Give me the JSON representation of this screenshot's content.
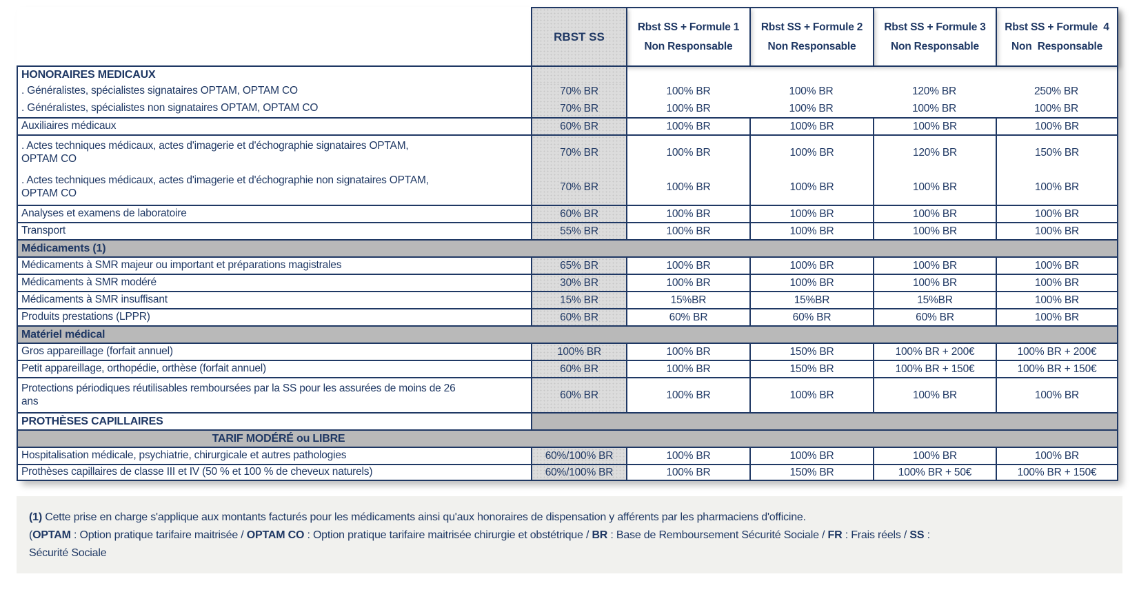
{
  "colors": {
    "ink": "#1f3864",
    "border": "#1f3864",
    "band": "#b9b9b9",
    "rbst_fill": "#dcdcdc",
    "footer_bg": "#f1f1ee"
  },
  "header": {
    "rbst": "RBST SS",
    "formules": [
      {
        "line1": "Rbst SS + Formule 1",
        "line2": "Non Responsable"
      },
      {
        "line1": "Rbst SS + Formule 2",
        "line2": "Non Responsable"
      },
      {
        "line1": "Rbst SS + Formule 3",
        "line2": "Non Responsable"
      },
      {
        "line1": "Rbst SS + Formule  4",
        "line2": "Non  Responsable"
      }
    ]
  },
  "rows": [
    {
      "type": "data",
      "bold": true,
      "no_dividers": true,
      "label": "HONORAIRES MEDICAUX",
      "values": [
        "",
        "",
        "",
        "",
        ""
      ]
    },
    {
      "type": "data",
      "no_top": true,
      "no_dividers": true,
      "label": ". Généralistes, spécialistes signataires OPTAM, OPTAM CO",
      "values": [
        "70% BR",
        "100% BR",
        "100% BR",
        "120% BR",
        "250% BR"
      ]
    },
    {
      "type": "data",
      "no_top": true,
      "no_dividers": true,
      "label": ". Généralistes, spécialistes non signataires OPTAM, OPTAM CO",
      "values": [
        "70% BR",
        "100% BR",
        "100% BR",
        "100% BR",
        "100% BR"
      ]
    },
    {
      "type": "data",
      "label": "Auxiliaires médicaux",
      "values": [
        "60% BR",
        "100% BR",
        "100% BR",
        "100% BR",
        "100% BR"
      ]
    },
    {
      "type": "data",
      "tall": true,
      "label": ". Actes techniques médicaux, actes d'imagerie et d'échographie signataires OPTAM,\nOPTAM CO",
      "values": [
        "70% BR",
        "100% BR",
        "100% BR",
        "120% BR",
        "150% BR"
      ]
    },
    {
      "type": "data",
      "tall": true,
      "no_top": true,
      "label": ". Actes techniques médicaux, actes d'imagerie et d'échographie non signataires OPTAM,\nOPTAM CO",
      "values": [
        "70% BR",
        "100% BR",
        "100% BR",
        "100% BR",
        "100% BR"
      ]
    },
    {
      "type": "data",
      "label": "Analyses et examens de laboratoire",
      "values": [
        "60% BR",
        "100% BR",
        "100% BR",
        "100% BR",
        "100% BR"
      ]
    },
    {
      "type": "data",
      "label": "Transport",
      "values": [
        "55% BR",
        "100% BR",
        "100% BR",
        "100% BR",
        "100% BR"
      ]
    },
    {
      "type": "section",
      "label": "Médicaments (1)"
    },
    {
      "type": "data",
      "label": "Médicaments à SMR majeur ou important et préparations magistrales",
      "values": [
        "65% BR",
        "100% BR",
        "100% BR",
        "100% BR",
        "100% BR"
      ]
    },
    {
      "type": "data",
      "label": "Médicaments à SMR modéré",
      "values": [
        "30% BR",
        "100% BR",
        "100% BR",
        "100% BR",
        "100% BR"
      ]
    },
    {
      "type": "data",
      "label": "Médicaments à SMR insuffisant",
      "values": [
        "15% BR",
        "15%BR",
        "15%BR",
        "15%BR",
        "100% BR"
      ]
    },
    {
      "type": "data",
      "label": "Produits prestations (LPPR)",
      "values": [
        "60% BR",
        "60% BR",
        "60% BR",
        "60% BR",
        "100% BR"
      ]
    },
    {
      "type": "section",
      "label": "Matériel médical"
    },
    {
      "type": "data",
      "label": "Gros appareillage (forfait annuel)",
      "values": [
        "100% BR",
        "100% BR",
        "150% BR",
        "100% BR + 200€",
        "100% BR + 200€"
      ]
    },
    {
      "type": "data",
      "label": "Petit appareillage, orthopédie, orthèse (forfait annuel)",
      "values": [
        "60% BR",
        "100% BR",
        "150% BR",
        "100% BR + 150€",
        "100% BR + 150€"
      ]
    },
    {
      "type": "data",
      "tall": true,
      "label": "Protections périodiques réutilisables remboursées par la SS pour les assurées de moins de 26\nans",
      "values": [
        "60% BR",
        "100% BR",
        "100% BR",
        "100% BR",
        "100% BR"
      ]
    },
    {
      "type": "section_split",
      "label": "PROTHÈSES CAPILLAIRES"
    },
    {
      "type": "section_center",
      "label": "TARIF MODÉRÉ ou LIBRE"
    },
    {
      "type": "data",
      "label": "Hospitalisation médicale, psychiatrie, chirurgicale et autres pathologies",
      "values": [
        "60%/100% BR",
        "100% BR",
        "100% BR",
        "100% BR",
        "100% BR"
      ]
    },
    {
      "type": "data",
      "label": "Prothèses capillaires de classe III et IV (50 % et 100 % de cheveux naturels)",
      "values": [
        "60%/100% BR",
        "100% BR",
        "150% BR",
        "100% BR + 50€",
        "100% BR + 150€"
      ]
    }
  ],
  "footnotes": [
    {
      "segments": [
        {
          "text": "(1)",
          "bold": true
        },
        {
          "text": " Cette prise en charge s'applique aux montants facturés pour les médicaments ainsi qu'aux honoraires de dispensation y afférents par les pharmaciens d'officine.",
          "bold": false
        }
      ]
    },
    {
      "segments": [
        {
          "text": "(",
          "bold": false
        },
        {
          "text": "OPTAM",
          "bold": true
        },
        {
          "text": " : Option pratique tarifaire maitrisée / ",
          "bold": false
        },
        {
          "text": "OPTAM CO",
          "bold": true
        },
        {
          "text": " : Option pratique tarifaire maitrisée chirurgie et obstétrique / ",
          "bold": false
        },
        {
          "text": "BR",
          "bold": true
        },
        {
          "text": " : Base de Remboursement Sécurité Sociale /  ",
          "bold": false
        },
        {
          "text": "FR",
          "bold": true
        },
        {
          "text": " : Frais réels / ",
          "bold": false
        },
        {
          "text": "SS",
          "bold": true
        },
        {
          "text": " :",
          "bold": false
        }
      ]
    },
    {
      "segments": [
        {
          "text": "Sécurité Sociale",
          "bold": false
        }
      ]
    }
  ]
}
